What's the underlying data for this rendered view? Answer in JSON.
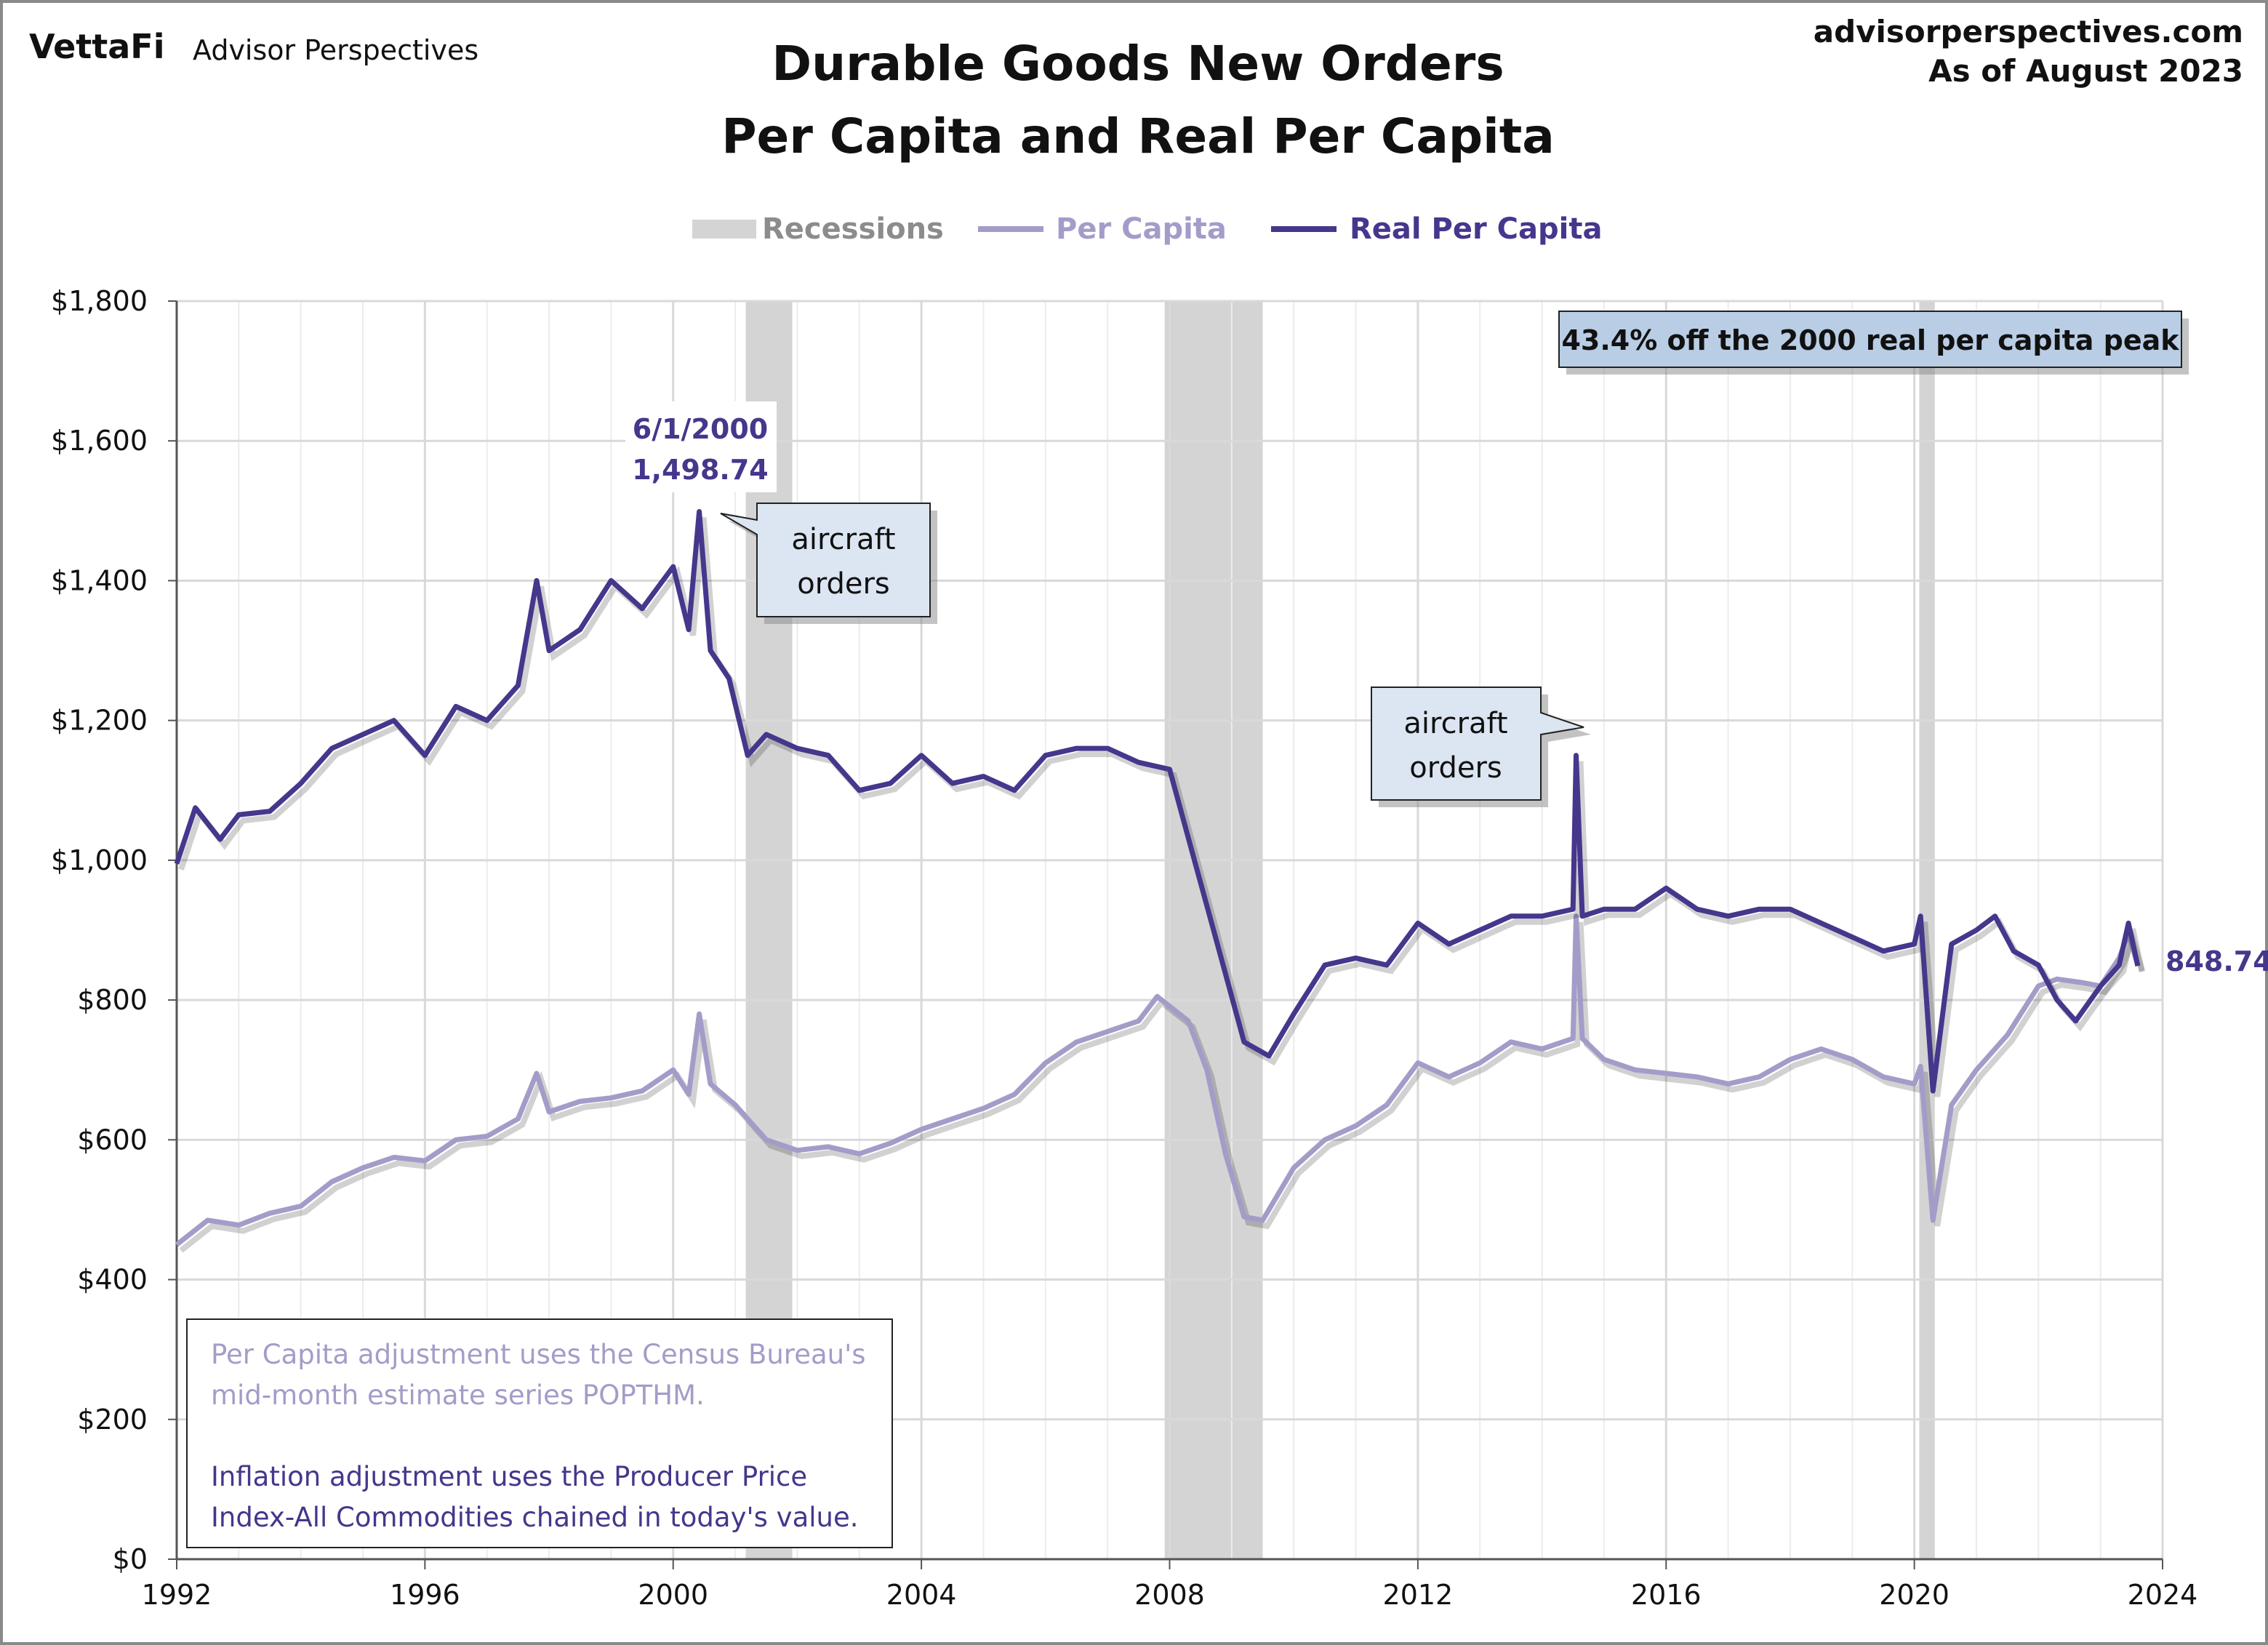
{
  "brand": {
    "logo": "VettaFi",
    "name": "Advisor Perspectives"
  },
  "source": {
    "site": "advisorperspectives.com",
    "as_of": "As of August 2023"
  },
  "colors": {
    "real": "#46368c",
    "nominal": "#a49cc8",
    "recession": "#d4d4d4",
    "callout_bg": "#dce6f2",
    "peak_box_bg": "#b9cde5"
  },
  "chart_data": {
    "type": "line",
    "title": [
      "Durable Goods New Orders",
      "Per Capita and Real Per Capita"
    ],
    "legend": [
      "Recessions",
      "Per Capita",
      "Real Per Capita"
    ],
    "legend_placement": "top",
    "xlim": [
      1992,
      2024
    ],
    "ylim": [
      0,
      1800
    ],
    "x_ticks": [
      "1992",
      "1996",
      "2000",
      "2004",
      "2008",
      "2012",
      "2016",
      "2020",
      "2024"
    ],
    "y_ticks": [
      "$0",
      "$200",
      "$400",
      "$600",
      "$800",
      "$1,000",
      "$1,200",
      "$1,400",
      "$1,600",
      "$1,800"
    ],
    "grid": true,
    "recessions": [
      [
        2001.17,
        2001.92
      ],
      [
        2007.92,
        2009.5
      ],
      [
        2020.08,
        2020.33
      ]
    ],
    "series": [
      {
        "name": "Per Capita",
        "points": [
          [
            1992.0,
            450
          ],
          [
            1992.5,
            485
          ],
          [
            1993.0,
            478
          ],
          [
            1993.5,
            495
          ],
          [
            1994.0,
            505
          ],
          [
            1994.5,
            540
          ],
          [
            1995.0,
            560
          ],
          [
            1995.5,
            575
          ],
          [
            1996.0,
            570
          ],
          [
            1996.5,
            600
          ],
          [
            1997.0,
            605
          ],
          [
            1997.5,
            630
          ],
          [
            1997.8,
            695
          ],
          [
            1998.0,
            640
          ],
          [
            1998.5,
            655
          ],
          [
            1999.0,
            660
          ],
          [
            1999.5,
            670
          ],
          [
            2000.0,
            700
          ],
          [
            2000.25,
            665
          ],
          [
            2000.42,
            780
          ],
          [
            2000.6,
            680
          ],
          [
            2001.0,
            650
          ],
          [
            2001.5,
            600
          ],
          [
            2002.0,
            585
          ],
          [
            2002.5,
            590
          ],
          [
            2003.0,
            580
          ],
          [
            2003.5,
            595
          ],
          [
            2004.0,
            615
          ],
          [
            2004.5,
            630
          ],
          [
            2005.0,
            645
          ],
          [
            2005.5,
            665
          ],
          [
            2006.0,
            710
          ],
          [
            2006.5,
            740
          ],
          [
            2007.0,
            755
          ],
          [
            2007.5,
            770
          ],
          [
            2007.8,
            805
          ],
          [
            2008.3,
            770
          ],
          [
            2008.6,
            700
          ],
          [
            2008.9,
            580
          ],
          [
            2009.2,
            490
          ],
          [
            2009.5,
            485
          ],
          [
            2010.0,
            560
          ],
          [
            2010.5,
            600
          ],
          [
            2011.0,
            620
          ],
          [
            2011.5,
            650
          ],
          [
            2012.0,
            710
          ],
          [
            2012.5,
            690
          ],
          [
            2013.0,
            710
          ],
          [
            2013.5,
            740
          ],
          [
            2014.0,
            730
          ],
          [
            2014.5,
            745
          ],
          [
            2014.55,
            920
          ],
          [
            2014.65,
            745
          ],
          [
            2015.0,
            715
          ],
          [
            2015.5,
            700
          ],
          [
            2016.0,
            695
          ],
          [
            2016.5,
            690
          ],
          [
            2017.0,
            680
          ],
          [
            2017.5,
            690
          ],
          [
            2018.0,
            715
          ],
          [
            2018.5,
            730
          ],
          [
            2019.0,
            715
          ],
          [
            2019.5,
            690
          ],
          [
            2020.0,
            680
          ],
          [
            2020.1,
            705
          ],
          [
            2020.3,
            485
          ],
          [
            2020.6,
            650
          ],
          [
            2021.0,
            700
          ],
          [
            2021.5,
            750
          ],
          [
            2022.0,
            820
          ],
          [
            2022.3,
            830
          ],
          [
            2022.7,
            825
          ],
          [
            2023.0,
            820
          ],
          [
            2023.3,
            860
          ],
          [
            2023.45,
            895
          ],
          [
            2023.6,
            850
          ]
        ]
      },
      {
        "name": "Real Per Capita",
        "points": [
          [
            1992.0,
            995
          ],
          [
            1992.3,
            1075
          ],
          [
            1992.7,
            1030
          ],
          [
            1993.0,
            1065
          ],
          [
            1993.5,
            1070
          ],
          [
            1994.0,
            1110
          ],
          [
            1994.5,
            1160
          ],
          [
            1995.0,
            1180
          ],
          [
            1995.5,
            1200
          ],
          [
            1996.0,
            1150
          ],
          [
            1996.5,
            1220
          ],
          [
            1997.0,
            1200
          ],
          [
            1997.5,
            1250
          ],
          [
            1997.8,
            1400
          ],
          [
            1998.0,
            1300
          ],
          [
            1998.5,
            1330
          ],
          [
            1999.0,
            1400
          ],
          [
            1999.5,
            1360
          ],
          [
            2000.0,
            1420
          ],
          [
            2000.25,
            1330
          ],
          [
            2000.42,
            1498.74
          ],
          [
            2000.6,
            1300
          ],
          [
            2000.9,
            1260
          ],
          [
            2001.2,
            1150
          ],
          [
            2001.5,
            1180
          ],
          [
            2002.0,
            1160
          ],
          [
            2002.5,
            1150
          ],
          [
            2003.0,
            1100
          ],
          [
            2003.5,
            1110
          ],
          [
            2004.0,
            1150
          ],
          [
            2004.5,
            1110
          ],
          [
            2005.0,
            1120
          ],
          [
            2005.5,
            1100
          ],
          [
            2006.0,
            1150
          ],
          [
            2006.5,
            1160
          ],
          [
            2007.0,
            1160
          ],
          [
            2007.5,
            1140
          ],
          [
            2008.0,
            1130
          ],
          [
            2008.4,
            1000
          ],
          [
            2008.8,
            870
          ],
          [
            2009.2,
            740
          ],
          [
            2009.6,
            720
          ],
          [
            2010.0,
            780
          ],
          [
            2010.5,
            850
          ],
          [
            2011.0,
            860
          ],
          [
            2011.5,
            850
          ],
          [
            2012.0,
            910
          ],
          [
            2012.5,
            880
          ],
          [
            2013.0,
            900
          ],
          [
            2013.5,
            920
          ],
          [
            2014.0,
            920
          ],
          [
            2014.5,
            930
          ],
          [
            2014.55,
            1150
          ],
          [
            2014.65,
            920
          ],
          [
            2015.0,
            930
          ],
          [
            2015.5,
            930
          ],
          [
            2016.0,
            960
          ],
          [
            2016.5,
            930
          ],
          [
            2017.0,
            920
          ],
          [
            2017.5,
            930
          ],
          [
            2018.0,
            930
          ],
          [
            2018.5,
            910
          ],
          [
            2019.0,
            890
          ],
          [
            2019.5,
            870
          ],
          [
            2020.0,
            880
          ],
          [
            2020.1,
            920
          ],
          [
            2020.3,
            670
          ],
          [
            2020.6,
            880
          ],
          [
            2021.0,
            900
          ],
          [
            2021.3,
            920
          ],
          [
            2021.6,
            870
          ],
          [
            2022.0,
            850
          ],
          [
            2022.3,
            800
          ],
          [
            2022.6,
            770
          ],
          [
            2023.0,
            820
          ],
          [
            2023.3,
            850
          ],
          [
            2023.45,
            910
          ],
          [
            2023.6,
            848.74
          ]
        ]
      }
    ],
    "annotations": {
      "peak_date": "6/1/2000",
      "peak_value": "1,498.74",
      "callout_1": [
        "aircraft",
        "orders"
      ],
      "callout_2": [
        "aircraft",
        "orders"
      ],
      "peak_box": "43.4% off the 2000 real per capita peak",
      "end_value": "848.74"
    },
    "notes": {
      "per_capita": [
        "Per Capita adjustment uses the Census Bureau's",
        "mid-month estimate series POPTHM."
      ],
      "inflation": [
        "Inflation adjustment uses the Producer Price",
        "Index-All Commodities chained in today's value."
      ]
    }
  }
}
